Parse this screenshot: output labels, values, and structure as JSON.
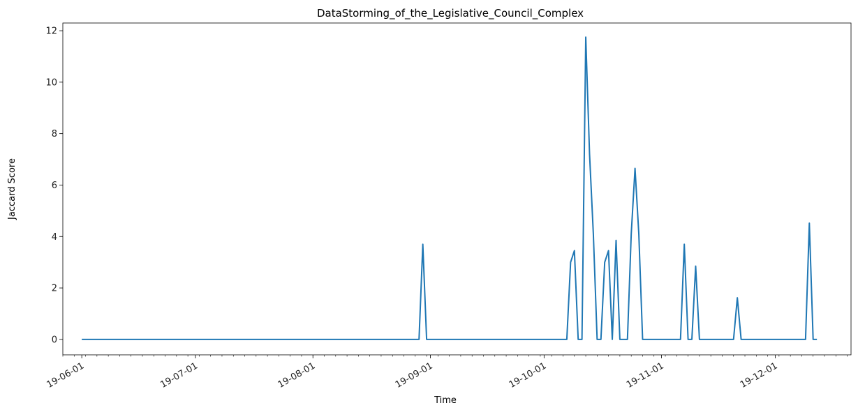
{
  "chart_data": {
    "type": "line",
    "title": "DataStorming_of_the_Legislative_Council_Complex",
    "xlabel": "Time",
    "ylabel": "Jaccard Score",
    "x_range": [
      "2019-05-27",
      "2019-12-21"
    ],
    "ylim": [
      -0.6,
      12.3
    ],
    "grid": false,
    "legend": "none",
    "line_color": "#1f77b4",
    "x_ticks": [
      {
        "date": "2019-06-01",
        "label": "19-06-01"
      },
      {
        "date": "2019-07-01",
        "label": "19-07-01"
      },
      {
        "date": "2019-08-01",
        "label": "19-08-01"
      },
      {
        "date": "2019-09-01",
        "label": "19-09-01"
      },
      {
        "date": "2019-10-01",
        "label": "19-10-01"
      },
      {
        "date": "2019-11-01",
        "label": "19-11-01"
      },
      {
        "date": "2019-12-01",
        "label": "19-12-01"
      }
    ],
    "y_ticks": [
      0,
      2,
      4,
      6,
      8,
      10,
      12
    ],
    "series": [
      {
        "x": [
          "2019-06-01",
          "2019-08-29",
          "2019-08-30",
          "2019-08-31",
          "2019-10-07",
          "2019-10-08",
          "2019-10-09",
          "2019-10-10",
          "2019-10-11",
          "2019-10-12",
          "2019-10-13",
          "2019-10-14",
          "2019-10-15",
          "2019-10-16",
          "2019-10-17",
          "2019-10-18",
          "2019-10-19",
          "2019-10-20",
          "2019-10-21",
          "2019-10-22",
          "2019-10-23",
          "2019-10-24",
          "2019-10-25",
          "2019-10-26",
          "2019-10-27",
          "2019-10-28",
          "2019-11-06",
          "2019-11-07",
          "2019-11-08",
          "2019-11-09",
          "2019-11-10",
          "2019-11-11",
          "2019-11-12",
          "2019-11-20",
          "2019-11-21",
          "2019-11-22",
          "2019-12-09",
          "2019-12-10",
          "2019-12-11",
          "2019-12-12"
        ],
        "y": [
          0,
          0,
          3.7,
          0,
          0,
          3.0,
          3.45,
          0,
          0,
          11.75,
          7.2,
          4.1,
          0,
          0,
          3.0,
          3.45,
          0,
          3.85,
          0,
          0,
          0,
          4.1,
          6.65,
          4.1,
          0,
          0,
          0,
          3.7,
          0,
          0,
          2.85,
          0,
          0,
          0,
          1.62,
          0,
          0,
          4.52,
          0,
          0
        ]
      }
    ]
  }
}
